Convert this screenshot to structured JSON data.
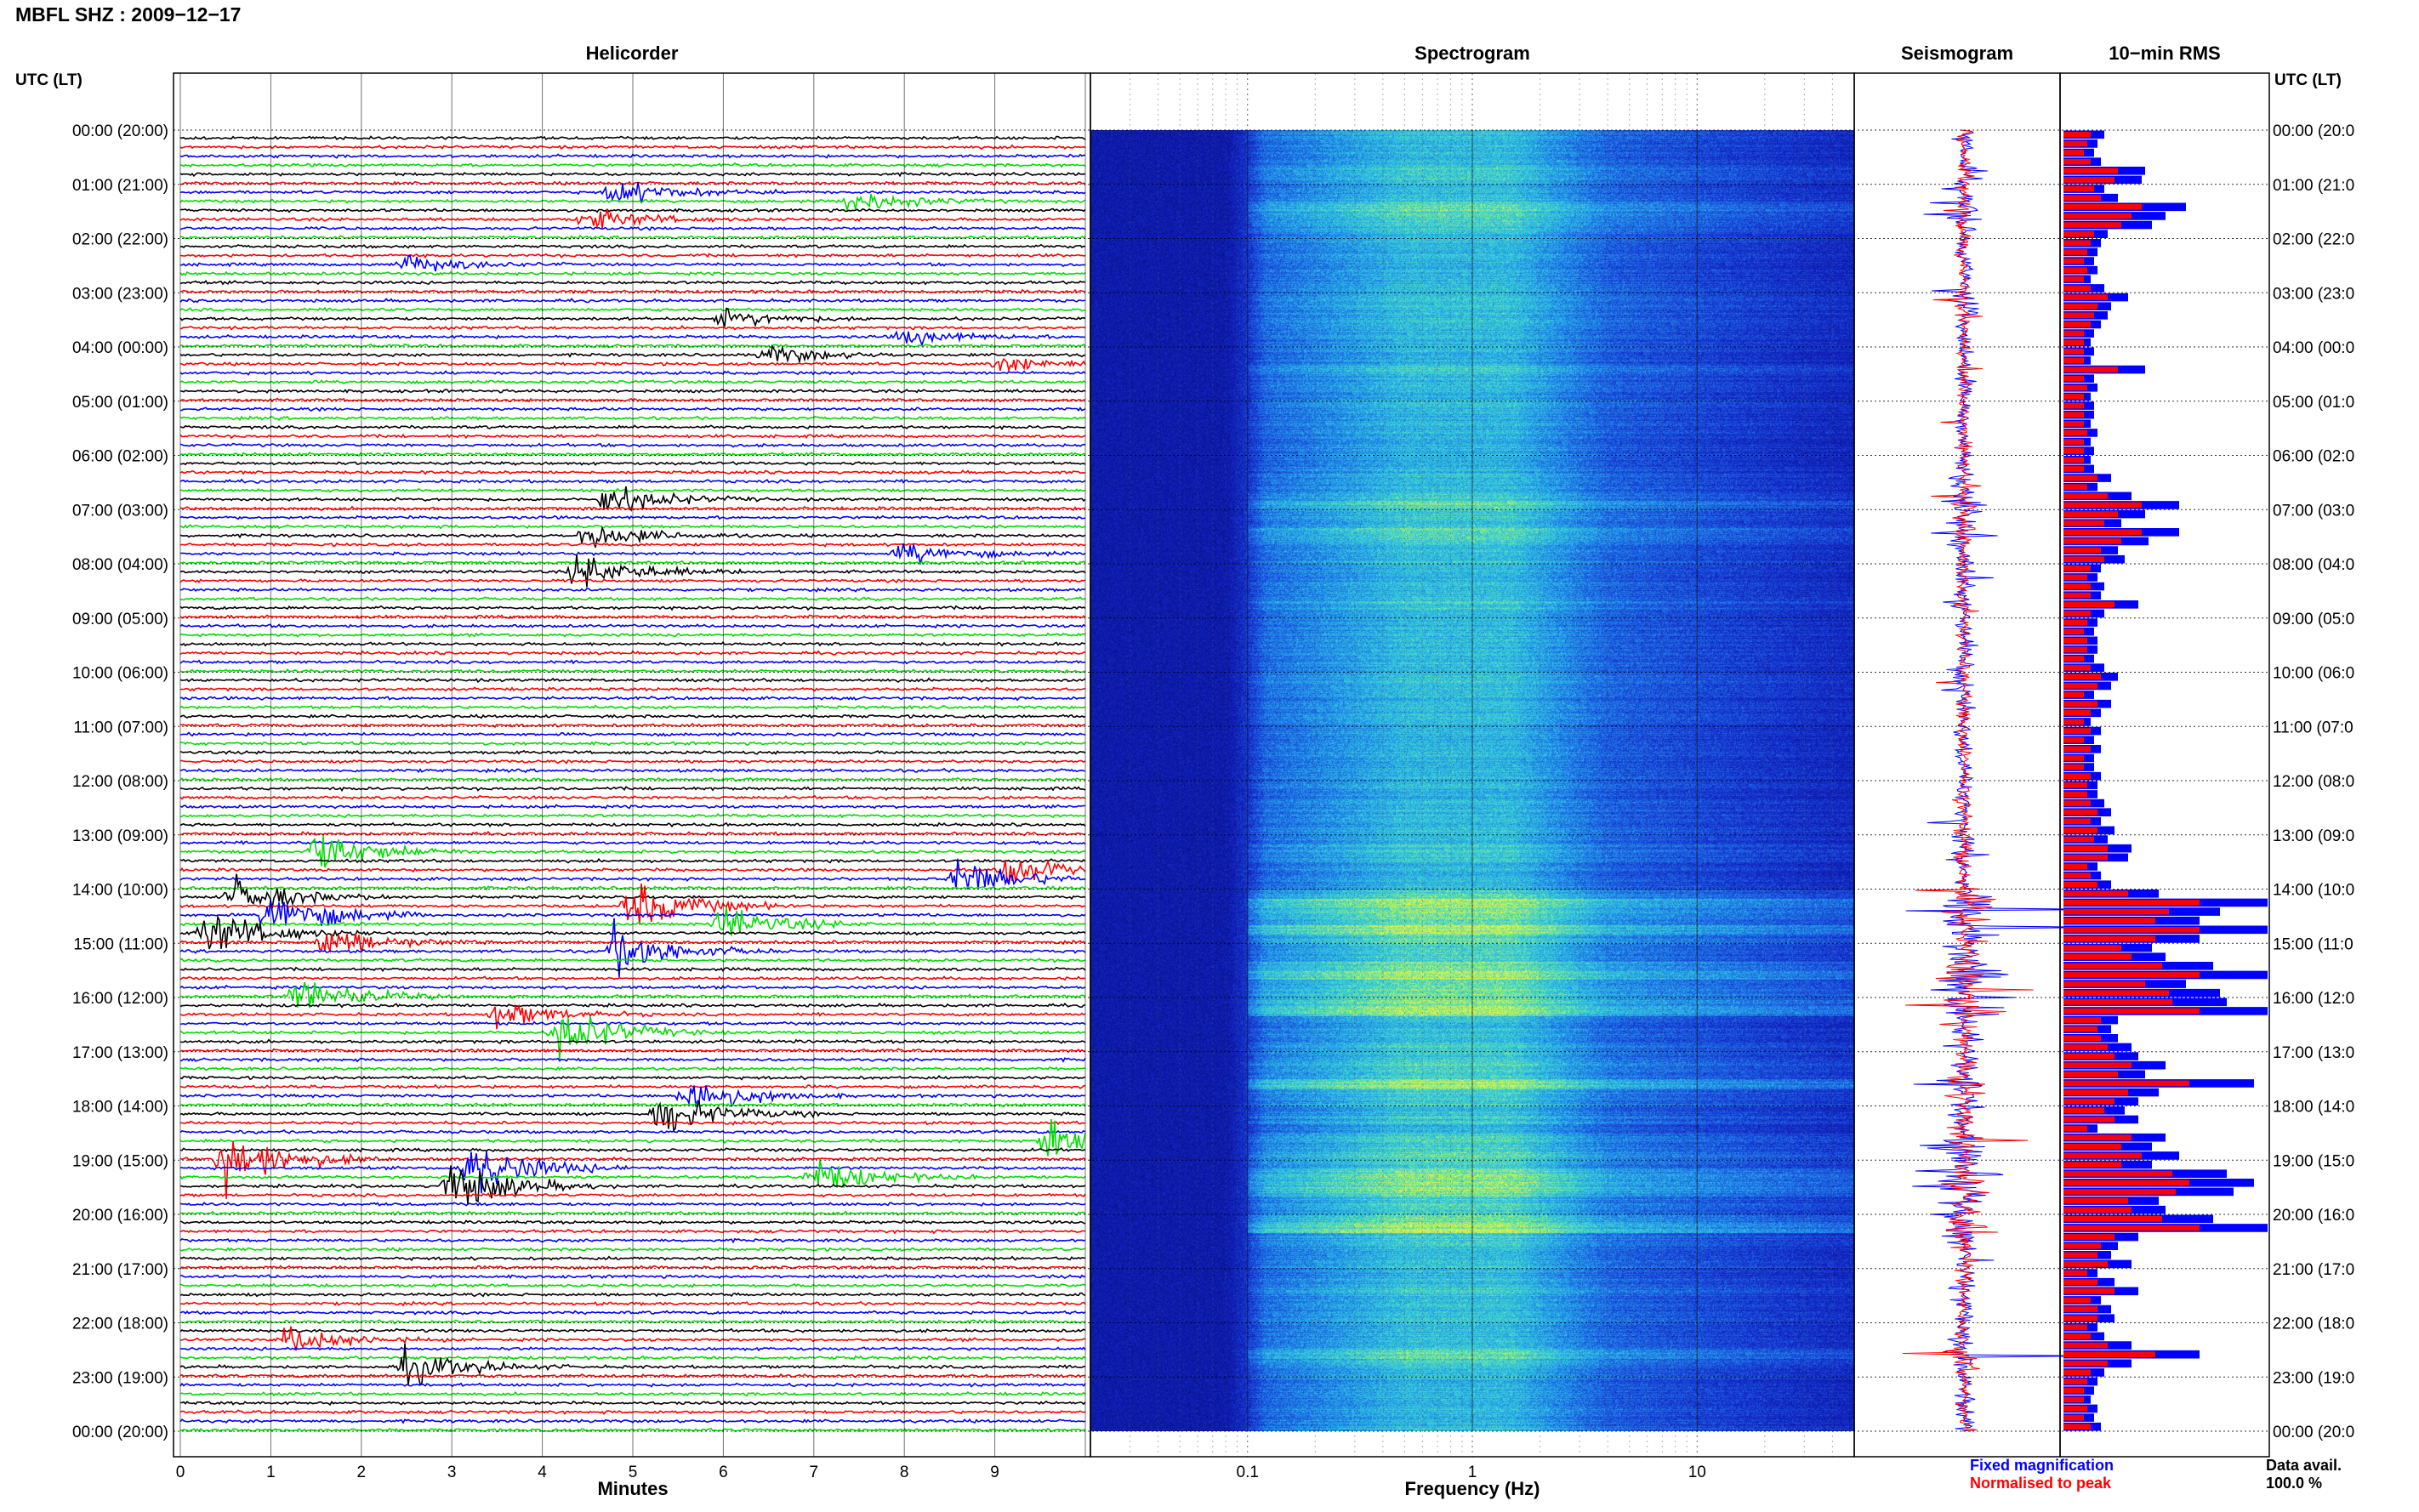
{
  "title": "MBFL SHZ : 2009−12−17",
  "panels": {
    "helicorder": "Helicorder",
    "spectrogram": "Spectrogram",
    "seismogram": "Seismogram",
    "rms": "10−min RMS"
  },
  "utc_label_left": "UTC (LT)",
  "utc_label_right": "UTC (LT)",
  "time_labels": [
    "00:00 (20:00)",
    "01:00 (21:00)",
    "02:00 (22:00)",
    "03:00 (23:00)",
    "04:00 (00:00)",
    "05:00 (01:00)",
    "06:00 (02:00)",
    "07:00 (03:00)",
    "08:00 (04:00)",
    "09:00 (05:00)",
    "10:00 (06:00)",
    "11:00 (07:00)",
    "12:00 (08:00)",
    "13:00 (09:00)",
    "14:00 (10:00)",
    "15:00 (11:00)",
    "16:00 (12:00)",
    "17:00 (13:00)",
    "18:00 (14:00)",
    "19:00 (15:00)",
    "20:00 (16:00)",
    "21:00 (17:00)",
    "22:00 (18:00)",
    "23:00 (19:00)",
    "00:00 (20:00)"
  ],
  "time_labels_right": [
    "00:00 (20:0",
    "01:00 (21:0",
    "02:00 (22:0",
    "03:00 (23:0",
    "04:00 (00:0",
    "05:00 (01:0",
    "06:00 (02:0",
    "07:00 (03:0",
    "08:00 (04:0",
    "09:00 (05:0",
    "10:00 (06:0",
    "11:00 (07:0",
    "12:00 (08:0",
    "13:00 (09:0",
    "14:00 (10:0",
    "15:00 (11:0",
    "16:00 (12:0",
    "17:00 (13:0",
    "18:00 (14:0",
    "19:00 (15:0",
    "20:00 (16:0",
    "21:00 (17:0",
    "22:00 (18:0",
    "23:00 (19:0",
    "00:00 (20:0"
  ],
  "minutes_ticks": [
    "0",
    "1",
    "2",
    "3",
    "4",
    "5",
    "6",
    "7",
    "8",
    "9"
  ],
  "xlabel_helicorder": "Minutes",
  "freq_ticks": [
    "0.1",
    "1",
    "10"
  ],
  "xlabel_spectrogram": "Frequency (Hz)",
  "legend": {
    "fixed": "Fixed magnification",
    "normalised": "Normalised to peak",
    "fixed_color": "#0000ff",
    "normalised_color": "#ff0000"
  },
  "data_avail_label": "Data avail.",
  "data_avail_value": "100.0 %",
  "colors": {
    "trace": [
      "#000000",
      "#ff0000",
      "#0000ff",
      "#00dd00"
    ],
    "spectrogram_low": "#0a16a8",
    "spectrogram_mid": "#2aa6e0",
    "spectrogram_high": "#c8f050"
  },
  "chart_data": [
    {
      "type": "line",
      "panel": "Helicorder",
      "xlabel": "Minutes",
      "xlim": [
        0,
        10
      ],
      "rows_per_hour": 6,
      "events": [
        {
          "row": 6,
          "minute": 4.8,
          "amp": 1.2
        },
        {
          "row": 7,
          "minute": 7.4,
          "amp": 1.0
        },
        {
          "row": 9,
          "minute": 4.5,
          "amp": 1.0
        },
        {
          "row": 14,
          "minute": 2.5,
          "amp": 0.8
        },
        {
          "row": 20,
          "minute": 6.0,
          "amp": 0.8
        },
        {
          "row": 22,
          "minute": 8.0,
          "amp": 0.7
        },
        {
          "row": 24,
          "minute": 6.5,
          "amp": 0.8
        },
        {
          "row": 25,
          "minute": 9.0,
          "amp": 0.8
        },
        {
          "row": 40,
          "minute": 4.7,
          "amp": 1.4
        },
        {
          "row": 44,
          "minute": 4.5,
          "amp": 1.2
        },
        {
          "row": 46,
          "minute": 8.0,
          "amp": 1.0
        },
        {
          "row": 48,
          "minute": 4.4,
          "amp": 1.6
        },
        {
          "row": 79,
          "minute": 1.5,
          "amp": 2.0
        },
        {
          "row": 81,
          "minute": 9.1,
          "amp": 2.0
        },
        {
          "row": 82,
          "minute": 8.6,
          "amp": 1.8
        },
        {
          "row": 84,
          "minute": 0.6,
          "amp": 1.8
        },
        {
          "row": 85,
          "minute": 5.0,
          "amp": 2.2
        },
        {
          "row": 86,
          "minute": 1.0,
          "amp": 2.4
        },
        {
          "row": 87,
          "minute": 6.0,
          "amp": 1.6
        },
        {
          "row": 88,
          "minute": 0.3,
          "amp": 2.2
        },
        {
          "row": 89,
          "minute": 1.6,
          "amp": 1.4
        },
        {
          "row": 90,
          "minute": 4.8,
          "amp": 2.2
        },
        {
          "row": 95,
          "minute": 1.3,
          "amp": 1.8
        },
        {
          "row": 97,
          "minute": 3.5,
          "amp": 1.2
        },
        {
          "row": 99,
          "minute": 4.2,
          "amp": 2.2
        },
        {
          "row": 106,
          "minute": 5.6,
          "amp": 1.8
        },
        {
          "row": 108,
          "minute": 5.3,
          "amp": 2.0
        },
        {
          "row": 111,
          "minute": 9.6,
          "amp": 2.0
        },
        {
          "row": 113,
          "minute": 0.5,
          "amp": 3.0
        },
        {
          "row": 114,
          "minute": 3.2,
          "amp": 2.6
        },
        {
          "row": 115,
          "minute": 7.0,
          "amp": 1.6
        },
        {
          "row": 116,
          "minute": 3.0,
          "amp": 2.4
        },
        {
          "row": 133,
          "minute": 1.2,
          "amp": 1.2
        },
        {
          "row": 136,
          "minute": 2.5,
          "amp": 1.6
        }
      ]
    },
    {
      "type": "heatmap",
      "panel": "Spectrogram",
      "xlabel": "Frequency (Hz)",
      "x_scale": "log",
      "xlim": [
        0.02,
        50
      ]
    },
    {
      "type": "line",
      "panel": "Seismogram",
      "x": [
        "00:00",
        "02:00",
        "04:00",
        "06:00",
        "08:00",
        "10:00",
        "12:00",
        "14:00",
        "16:00",
        "18:00",
        "20:00",
        "22:00",
        "24:00"
      ]
    },
    {
      "type": "bar",
      "panel": "10−min RMS",
      "series": [
        {
          "name": "Fixed magnification",
          "color": "#0000ff",
          "values": [
            1.2,
            1.0,
            0.9,
            1.1,
            2.4,
            2.3,
            1.2,
            1.6,
            3.6,
            3.0,
            2.6,
            1.3,
            1.1,
            1.0,
            0.9,
            1.0,
            0.8,
            1.2,
            1.9,
            1.4,
            1.3,
            1.1,
            0.9,
            0.8,
            0.9,
            0.8,
            2.4,
            0.9,
            1.0,
            0.8,
            0.9,
            0.9,
            0.8,
            1.0,
            0.8,
            0.9,
            0.8,
            0.9,
            1.4,
            1.0,
            2.0,
            3.4,
            2.4,
            1.7,
            3.4,
            2.5,
            1.6,
            1.8,
            1.1,
            1.0,
            1.2,
            1.1,
            2.2,
            1.2,
            1.0,
            0.9,
            1.0,
            1.0,
            0.9,
            1.2,
            1.6,
            1.4,
            0.9,
            1.4,
            1.1,
            0.8,
            1.1,
            0.9,
            1.1,
            0.9,
            0.9,
            1.1,
            1.0,
            1.0,
            1.2,
            1.4,
            1.1,
            1.5,
            1.3,
            2.0,
            1.9,
            1.0,
            1.1,
            1.4,
            2.8,
            6.0,
            4.6,
            4.0,
            6.0,
            4.0,
            2.6,
            3.0,
            4.4,
            6.0,
            3.6,
            4.6,
            4.8,
            6.0,
            1.6,
            1.4,
            1.6,
            2.0,
            2.2,
            3.0,
            2.4,
            5.6,
            2.8,
            2.2,
            1.8,
            2.2,
            1.0,
            3.0,
            2.6,
            3.4,
            2.6,
            4.8,
            5.6,
            5.0,
            2.8,
            3.0,
            4.4,
            6.0,
            2.2,
            1.6,
            1.4,
            2.0,
            1.0,
            1.5,
            2.2,
            1.1,
            1.4,
            1.5,
            1.0,
            1.2,
            2.0,
            4.0,
            2.0,
            1.2,
            1.0,
            0.9,
            0.8,
            1.0,
            0.9,
            1.1
          ]
        },
        {
          "name": "Normalised to peak",
          "color": "#ff0000",
          "values": [
            0.8,
            0.7,
            0.6,
            0.8,
            1.6,
            1.5,
            0.9,
            1.1,
            2.3,
            2.0,
            1.7,
            0.9,
            0.8,
            0.7,
            0.6,
            0.7,
            0.6,
            0.8,
            1.3,
            1.0,
            0.9,
            0.8,
            0.6,
            0.6,
            0.6,
            0.6,
            1.6,
            0.6,
            0.7,
            0.6,
            0.6,
            0.6,
            0.6,
            0.7,
            0.6,
            0.6,
            0.6,
            0.6,
            1.0,
            0.7,
            1.3,
            2.3,
            1.6,
            1.2,
            2.3,
            1.7,
            1.1,
            1.2,
            0.8,
            0.7,
            0.8,
            0.8,
            1.5,
            0.8,
            0.7,
            0.6,
            0.7,
            0.7,
            0.6,
            0.8,
            1.1,
            1.0,
            0.6,
            1.0,
            0.8,
            0.6,
            0.8,
            0.6,
            0.8,
            0.6,
            0.6,
            0.8,
            0.7,
            0.7,
            0.8,
            1.0,
            0.8,
            1.0,
            0.9,
            1.3,
            1.3,
            0.7,
            0.8,
            1.0,
            1.9,
            4.0,
            3.1,
            2.7,
            4.0,
            2.7,
            1.7,
            2.0,
            2.9,
            4.0,
            2.4,
            3.1,
            3.2,
            4.0,
            1.1,
            1.0,
            1.1,
            1.3,
            1.5,
            2.0,
            1.6,
            3.7,
            1.9,
            1.5,
            1.2,
            1.5,
            0.7,
            2.0,
            1.7,
            2.3,
            1.7,
            3.2,
            3.7,
            3.3,
            1.9,
            2.0,
            2.9,
            4.0,
            1.5,
            1.1,
            1.0,
            1.3,
            0.7,
            1.0,
            1.5,
            0.8,
            1.0,
            1.0,
            0.7,
            0.8,
            1.3,
            2.7,
            1.3,
            0.8,
            0.7,
            0.6,
            0.6,
            0.7,
            0.6,
            0.8
          ]
        }
      ]
    }
  ]
}
